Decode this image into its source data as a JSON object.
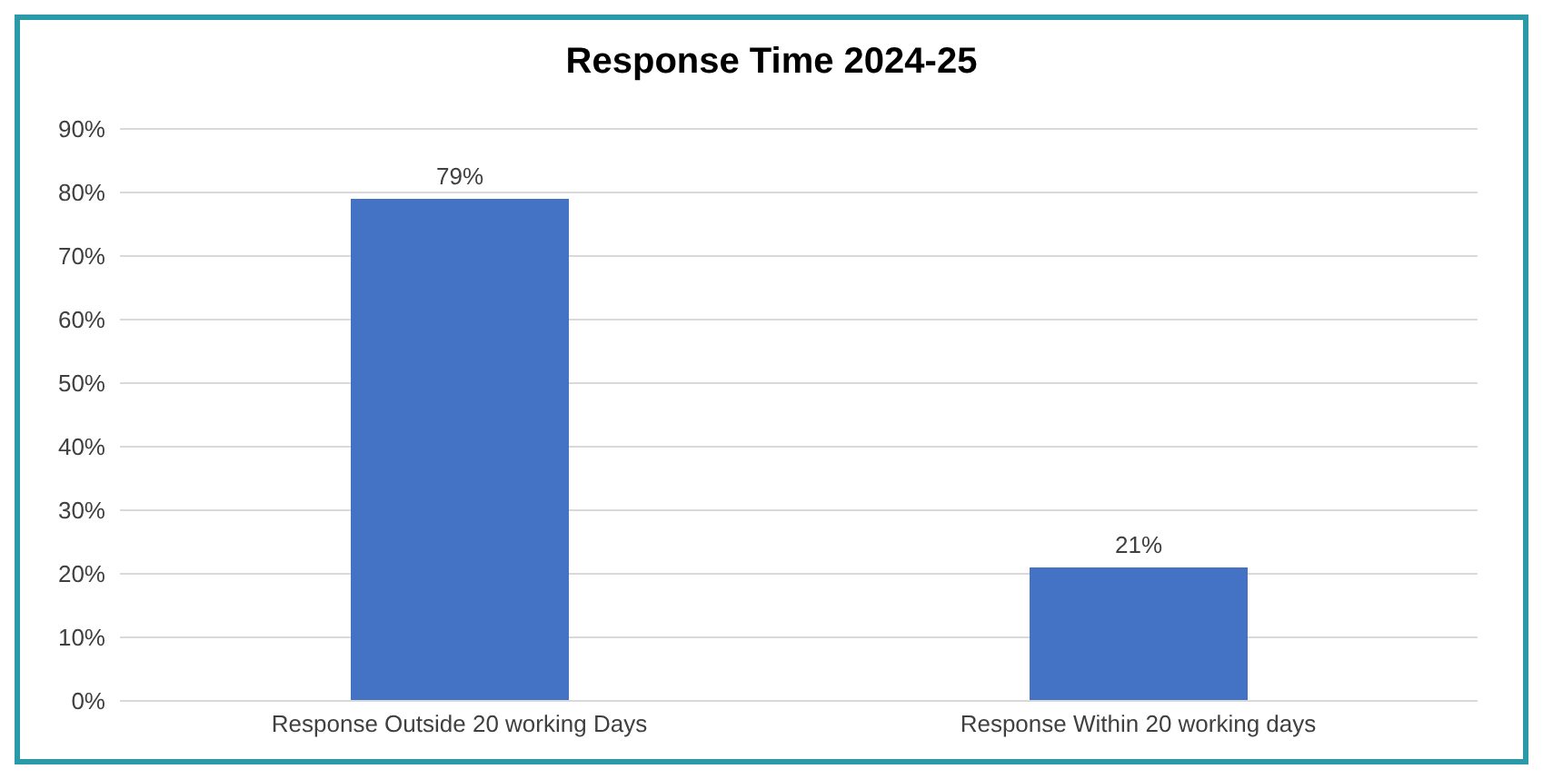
{
  "chart_data": {
    "type": "bar",
    "title": "Response Time 2024-25",
    "categories": [
      "Response Outside 20 working Days",
      "Response Within 20 working days"
    ],
    "values": [
      79,
      21
    ],
    "value_labels": [
      "79%",
      "21%"
    ],
    "color": "#4472c4",
    "ylim": [
      0,
      90
    ],
    "yticks": [
      {
        "value": 0,
        "label": "0%"
      },
      {
        "value": 10,
        "label": "10%"
      },
      {
        "value": 20,
        "label": "20%"
      },
      {
        "value": 30,
        "label": "30%"
      },
      {
        "value": 40,
        "label": "40%"
      },
      {
        "value": 50,
        "label": "50%"
      },
      {
        "value": 60,
        "label": "60%"
      },
      {
        "value": 70,
        "label": "70%"
      },
      {
        "value": 80,
        "label": "80%"
      },
      {
        "value": 90,
        "label": "90%"
      }
    ],
    "grid": "y"
  }
}
